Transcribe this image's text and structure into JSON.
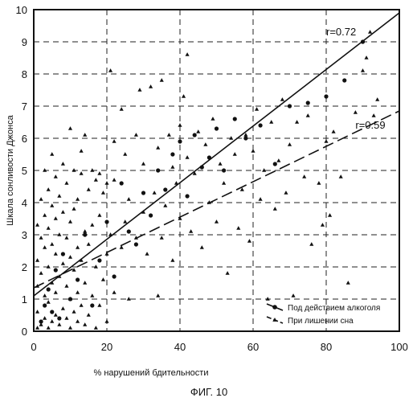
{
  "chart_data": {
    "type": "scatter",
    "xlabel": "% нарушений бдительности",
    "ylabel": "Шкала сонливости Джонса",
    "caption": "ФИГ. 10",
    "xlim": [
      0,
      100
    ],
    "ylim": [
      0,
      10
    ],
    "xticks": [
      0,
      20,
      40,
      60,
      80,
      100
    ],
    "yticks": [
      0,
      1,
      2,
      3,
      4,
      5,
      6,
      7,
      8,
      9,
      10
    ],
    "grid": "dashed",
    "legend_position": "bottom-right",
    "series": [
      {
        "name": "Под действием алкоголя",
        "marker": "circle",
        "fit": {
          "label": "r=0.72",
          "style": "solid",
          "intercept": 1.1,
          "slope": 0.088
        },
        "points": [
          [
            2,
            0.3
          ],
          [
            3,
            0.8
          ],
          [
            4,
            1.3
          ],
          [
            5,
            0.6
          ],
          [
            6,
            1.9
          ],
          [
            7,
            0.4
          ],
          [
            8,
            2.4
          ],
          [
            10,
            1.0
          ],
          [
            12,
            1.6
          ],
          [
            14,
            3.0
          ],
          [
            16,
            0.8
          ],
          [
            18,
            2.2
          ],
          [
            20,
            3.4
          ],
          [
            22,
            1.7
          ],
          [
            24,
            4.6
          ],
          [
            26,
            3.1
          ],
          [
            28,
            2.7
          ],
          [
            30,
            4.3
          ],
          [
            32,
            3.6
          ],
          [
            34,
            5.0
          ],
          [
            36,
            4.4
          ],
          [
            38,
            5.5
          ],
          [
            40,
            5.9
          ],
          [
            42,
            4.2
          ],
          [
            44,
            6.1
          ],
          [
            46,
            5.1
          ],
          [
            48,
            5.4
          ],
          [
            50,
            6.3
          ],
          [
            52,
            5.0
          ],
          [
            55,
            6.6
          ],
          [
            58,
            6.0
          ],
          [
            62,
            6.4
          ],
          [
            66,
            5.2
          ],
          [
            70,
            7.0
          ],
          [
            75,
            7.1
          ],
          [
            80,
            7.3
          ],
          [
            85,
            7.8
          ],
          [
            90,
            9.0
          ]
        ]
      },
      {
        "name": "При лишении сна",
        "marker": "triangle",
        "fit": {
          "label": "r=0.59",
          "style": "dashed",
          "intercept": 1.35,
          "slope": 0.055
        },
        "points": [
          [
            1,
            0.1
          ],
          [
            1,
            0.6
          ],
          [
            1,
            1.4
          ],
          [
            1,
            2.2
          ],
          [
            1,
            3.3
          ],
          [
            2,
            0.2
          ],
          [
            2,
            1.8
          ],
          [
            2,
            2.9
          ],
          [
            2,
            4.1
          ],
          [
            3,
            0.4
          ],
          [
            3,
            1.1
          ],
          [
            3,
            2.6
          ],
          [
            3,
            3.6
          ],
          [
            3,
            5.0
          ],
          [
            4,
            0.1
          ],
          [
            4,
            0.9
          ],
          [
            4,
            2.0
          ],
          [
            4,
            3.2
          ],
          [
            4,
            4.4
          ],
          [
            5,
            0.3
          ],
          [
            5,
            1.5
          ],
          [
            5,
            2.7
          ],
          [
            5,
            3.9
          ],
          [
            5,
            5.5
          ],
          [
            6,
            0.5
          ],
          [
            6,
            1.2
          ],
          [
            6,
            2.4
          ],
          [
            6,
            3.5
          ],
          [
            6,
            4.8
          ],
          [
            7,
            0.2
          ],
          [
            7,
            1.7
          ],
          [
            7,
            3.0
          ],
          [
            7,
            4.2
          ],
          [
            8,
            0.7
          ],
          [
            8,
            2.1
          ],
          [
            8,
            3.7
          ],
          [
            8,
            5.2
          ],
          [
            9,
            0.4
          ],
          [
            9,
            1.4
          ],
          [
            9,
            2.9
          ],
          [
            9,
            4.6
          ],
          [
            10,
            0.1
          ],
          [
            10,
            1.0
          ],
          [
            10,
            2.3
          ],
          [
            10,
            3.4
          ],
          [
            10,
            6.3
          ],
          [
            11,
            0.6
          ],
          [
            11,
            1.9
          ],
          [
            11,
            3.8
          ],
          [
            11,
            5.0
          ],
          [
            12,
            0.3
          ],
          [
            12,
            1.2
          ],
          [
            12,
            2.6
          ],
          [
            12,
            4.1
          ],
          [
            13,
            0.8
          ],
          [
            13,
            2.2
          ],
          [
            13,
            4.9
          ],
          [
            13,
            5.6
          ],
          [
            14,
            0.2
          ],
          [
            14,
            1.5
          ],
          [
            14,
            3.1
          ],
          [
            14,
            6.1
          ],
          [
            15,
            0.5
          ],
          [
            15,
            2.7
          ],
          [
            15,
            4.4
          ],
          [
            16,
            1.1
          ],
          [
            16,
            3.3
          ],
          [
            16,
            5.0
          ],
          [
            17,
            0.1
          ],
          [
            17,
            2.0
          ],
          [
            17,
            4.7
          ],
          [
            18,
            0.8
          ],
          [
            18,
            3.6
          ],
          [
            18,
            4.9
          ],
          [
            19,
            1.6
          ],
          [
            19,
            4.3
          ],
          [
            20,
            0.3
          ],
          [
            20,
            2.4
          ],
          [
            20,
            4.6
          ],
          [
            21,
            3.0
          ],
          [
            21,
            8.1
          ],
          [
            22,
            1.2
          ],
          [
            22,
            4.7
          ],
          [
            22,
            5.9
          ],
          [
            24,
            2.6
          ],
          [
            24,
            6.9
          ],
          [
            25,
            3.4
          ],
          [
            25,
            5.5
          ],
          [
            26,
            1.0
          ],
          [
            26,
            4.1
          ],
          [
            28,
            2.9
          ],
          [
            28,
            6.1
          ],
          [
            29,
            7.5
          ],
          [
            30,
            3.7
          ],
          [
            30,
            5.2
          ],
          [
            31,
            2.4
          ],
          [
            32,
            7.6
          ],
          [
            33,
            4.3
          ],
          [
            34,
            1.1
          ],
          [
            34,
            5.7
          ],
          [
            35,
            2.9
          ],
          [
            35,
            7.8
          ],
          [
            36,
            3.9
          ],
          [
            37,
            6.1
          ],
          [
            38,
            2.2
          ],
          [
            38,
            5.1
          ],
          [
            39,
            4.6
          ],
          [
            40,
            3.5
          ],
          [
            40,
            6.4
          ],
          [
            41,
            7.3
          ],
          [
            42,
            8.6
          ],
          [
            42,
            5.4
          ],
          [
            43,
            3.1
          ],
          [
            44,
            4.9
          ],
          [
            45,
            6.2
          ],
          [
            46,
            2.6
          ],
          [
            47,
            5.8
          ],
          [
            48,
            4.0
          ],
          [
            49,
            6.6
          ],
          [
            50,
            3.4
          ],
          [
            51,
            5.2
          ],
          [
            52,
            4.6
          ],
          [
            53,
            1.8
          ],
          [
            54,
            6.0
          ],
          [
            55,
            5.5
          ],
          [
            56,
            3.2
          ],
          [
            57,
            4.4
          ],
          [
            58,
            6.1
          ],
          [
            59,
            2.8
          ],
          [
            60,
            5.6
          ],
          [
            61,
            6.9
          ],
          [
            62,
            4.1
          ],
          [
            63,
            5.0
          ],
          [
            64,
            1.0
          ],
          [
            65,
            6.5
          ],
          [
            66,
            3.8
          ],
          [
            67,
            5.3
          ],
          [
            68,
            7.2
          ],
          [
            69,
            4.3
          ],
          [
            70,
            5.8
          ],
          [
            71,
            1.1
          ],
          [
            72,
            6.5
          ],
          [
            74,
            4.8
          ],
          [
            75,
            6.7
          ],
          [
            76,
            2.7
          ],
          [
            78,
            4.6
          ],
          [
            79,
            3.3
          ],
          [
            80,
            5.9
          ],
          [
            81,
            3.6
          ],
          [
            82,
            6.2
          ],
          [
            84,
            4.8
          ],
          [
            86,
            1.5
          ],
          [
            88,
            6.8
          ],
          [
            90,
            8.1
          ],
          [
            91,
            8.5
          ],
          [
            92,
            9.3
          ],
          [
            93,
            6.7
          ],
          [
            94,
            7.2
          ]
        ]
      }
    ],
    "annotations": [
      {
        "text": "r=0.72",
        "x": 80,
        "y": 9.2
      },
      {
        "text": "r=0.59",
        "x": 88,
        "y": 6.3
      }
    ]
  }
}
